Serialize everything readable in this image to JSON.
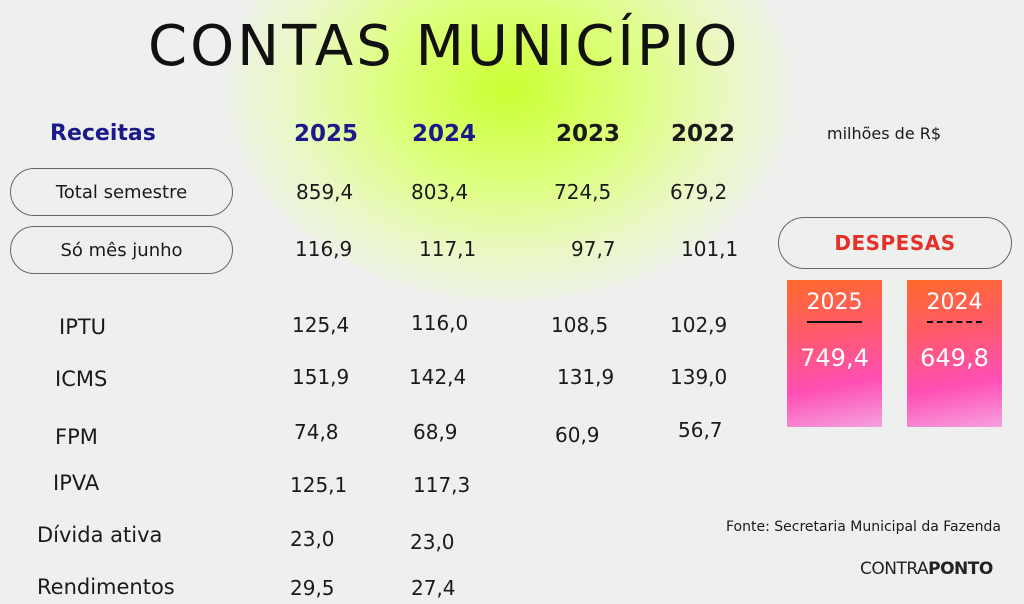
{
  "title": "CONTAS  MUNICÍPIO",
  "header": {
    "receitas": "Receitas",
    "years": [
      "2025",
      "2024",
      "2023",
      "2022"
    ],
    "unit": "milhões de R$"
  },
  "summary_rows": [
    {
      "label": "Total semestre",
      "values": [
        "859,4",
        "803,4",
        "724,5",
        "679,2"
      ]
    },
    {
      "label": "Só mês junho",
      "values": [
        "116,9",
        "117,1",
        "97,7",
        "101,1"
      ]
    }
  ],
  "tax_rows": [
    {
      "label": "IPTU",
      "values": [
        "125,4",
        "116,0",
        "108,5",
        "102,9"
      ]
    },
    {
      "label": "ICMS",
      "values": [
        "151,9",
        "142,4",
        "131,9",
        "139,0"
      ]
    },
    {
      "label": "FPM",
      "values": [
        "74,8",
        "68,9",
        "60,9",
        "56,7"
      ]
    },
    {
      "label": "IPVA",
      "values": [
        "125,1",
        "117,3"
      ]
    },
    {
      "label": "Dívida ativa",
      "values": [
        "23,0",
        "23,0"
      ]
    },
    {
      "label": "Rendimentos",
      "values": [
        "29,5",
        "27,4"
      ]
    }
  ],
  "despesas": {
    "title": "DESPESAS",
    "cards": [
      {
        "year": "2025",
        "value": "749,4"
      },
      {
        "year": "2024",
        "value": "649,8"
      }
    ]
  },
  "source": "Fonte: Secretaria Municipal da Fazenda",
  "logo": {
    "part1": "CONTRA",
    "part2": "PONTO"
  },
  "colors": {
    "accent_blue": "#1c1a8a",
    "despesas_red": "#e5302a",
    "glow": "#ccff33"
  }
}
